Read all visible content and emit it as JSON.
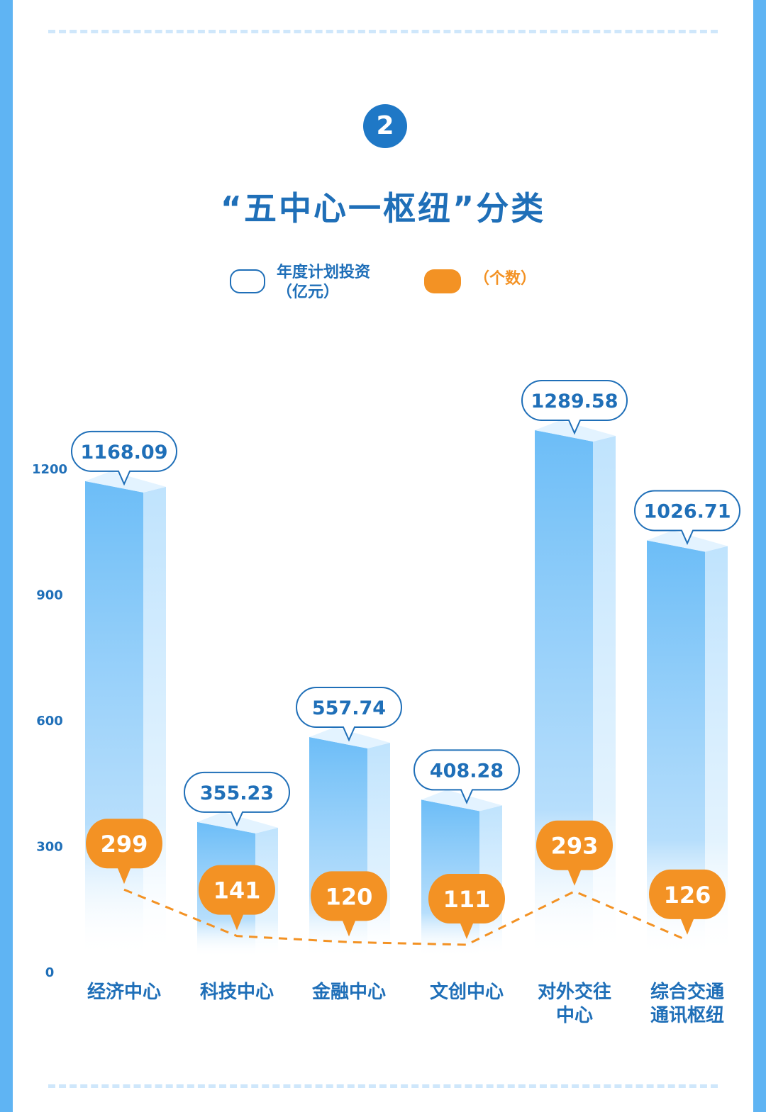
{
  "header": {
    "step_number": "2",
    "title": "“五中心一枢纽”分类"
  },
  "legend": {
    "investment_line1": "年度计划投资",
    "investment_line2": "（亿元）",
    "count_label": "（个数）"
  },
  "colors": {
    "accent_blue": "#1f6fb8",
    "bar_blue": "#6cbdf7",
    "count_orange": "#f39224",
    "frame_blue": "#5fb4f3"
  },
  "chart_data": {
    "type": "bar",
    "categories": [
      "经济中心",
      "科技中心",
      "金融中心",
      "文创中心",
      "对外交往中心",
      "综合交通通讯枢纽"
    ],
    "category_lines": [
      [
        "经济中心"
      ],
      [
        "科技中心"
      ],
      [
        "金融中心"
      ],
      [
        "文创中心"
      ],
      [
        "对外交往",
        "中心"
      ],
      [
        "综合交通",
        "通讯枢纽"
      ]
    ],
    "series": [
      {
        "name": "年度计划投资（亿元）",
        "type": "bar",
        "values": [
          1168.09,
          355.23,
          557.74,
          408.28,
          1289.58,
          1026.71
        ]
      },
      {
        "name": "（个数）",
        "type": "line",
        "values": [
          299,
          141,
          120,
          111,
          293,
          126
        ]
      }
    ],
    "value_labels": [
      "1168.09",
      "355.23",
      "557.74",
      "408.28",
      "1289.58",
      "1026.71"
    ],
    "count_labels": [
      "299",
      "141",
      "120",
      "111",
      "293",
      "126"
    ],
    "y_ticks": [
      0,
      300,
      600,
      900,
      1200
    ],
    "y_tick_labels": [
      "0",
      "300",
      "600",
      "900",
      "1200"
    ],
    "ylim": [
      0,
      1200
    ],
    "grid": false,
    "legend_position": "top"
  }
}
